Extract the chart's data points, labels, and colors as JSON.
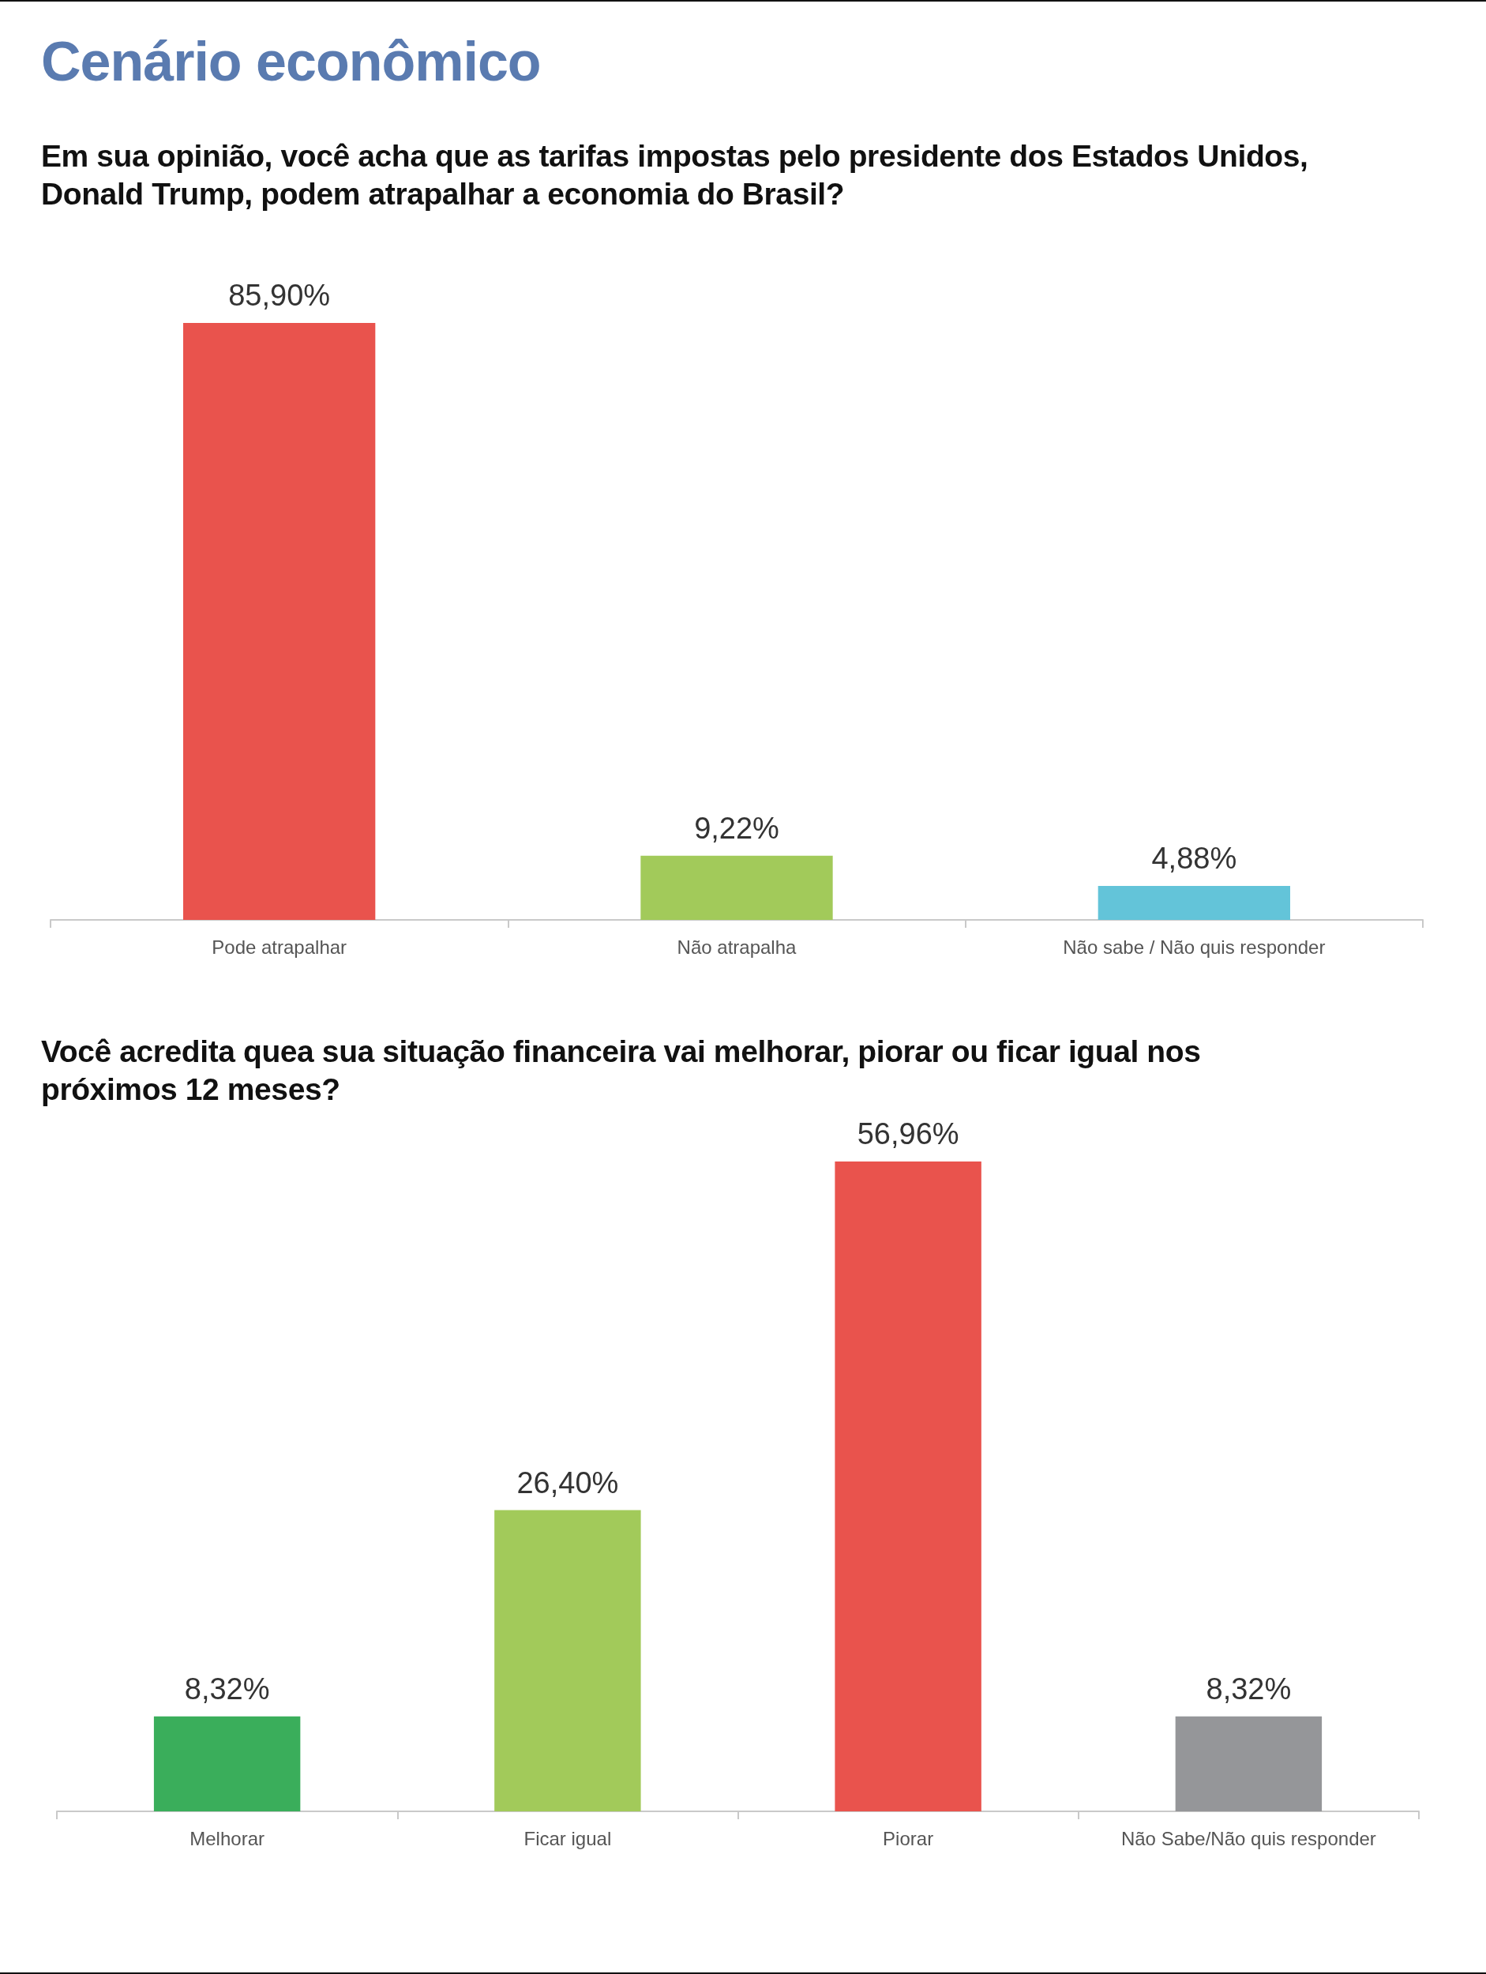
{
  "chart_data": [
    {
      "type": "bar",
      "title": "Cenário econômico",
      "subtitle": "Em sua opinião, você acha que as tarifas impostas pelo presidente dos Estados Unidos, Donald Trump, podem atrapalhar a economia do Brasil?",
      "categories": [
        "Pode atrapalhar",
        "Não atrapalha",
        "Não sabe / Não quis responder"
      ],
      "values": [
        85.9,
        9.22,
        4.88
      ],
      "colors": [
        "#e9534d",
        "#a2ca5a",
        "#63c4d9"
      ],
      "value_labels": [
        "85,90%",
        "9,22%",
        "4,88%"
      ]
    },
    {
      "type": "bar",
      "title": "Você acredita quea sua situação financeira vai melhorar, piorar ou ficar igual nos próximos 12 meses?",
      "categories": [
        "Melhorar",
        "Ficar igual",
        "Piorar",
        "Não Sabe/Não quis responder"
      ],
      "values": [
        8.32,
        26.4,
        56.96,
        8.32
      ],
      "colors": [
        "#3aae5b",
        "#a2ca5a",
        "#e9534d",
        "#959699"
      ],
      "value_labels": [
        "8,32%",
        "26,40%",
        "56,96%",
        "8,32%"
      ]
    }
  ]
}
